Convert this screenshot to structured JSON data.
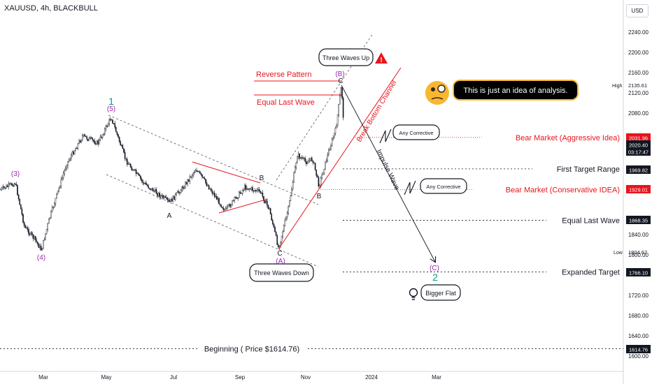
{
  "header": {
    "title": "XAUUSD, 4h, BLACKBULL",
    "currency": "USD"
  },
  "colors": {
    "red": "#e8141c",
    "purple": "#9c27b0",
    "green": "#089981",
    "dark": "#131722",
    "grid": "#787b86"
  },
  "chart_data": {
    "type": "candlestick",
    "title": "XAUUSD, 4h, BLACKBULL",
    "currency": "USD",
    "x_ticks": [
      "Mar",
      "May",
      "Jul",
      "Sep",
      "Nov",
      "2024",
      "Mar"
    ],
    "y_ticks": [
      2240,
      2200,
      2160,
      2120,
      2080,
      1840,
      1800,
      1720,
      1680,
      1640,
      1600
    ],
    "ylim": [
      1590,
      2270
    ],
    "high": {
      "label": "High",
      "value": "2135.61"
    },
    "low": {
      "label": "Low",
      "value": "1804.67"
    },
    "price_tags": [
      {
        "value": "2031.96",
        "color": "#e8141c"
      },
      {
        "value": "2020.40",
        "color": "#131722"
      },
      {
        "value": "03:17:47",
        "color": "#131722"
      },
      {
        "value": "1969.82",
        "color": "#131722"
      },
      {
        "value": "1929.01",
        "color": "#e8141c"
      },
      {
        "value": "1868.35",
        "color": "#131722"
      },
      {
        "value": "1766.10",
        "color": "#131722"
      },
      {
        "value": "1614.76",
        "color": "#131722"
      }
    ],
    "levels": [
      {
        "label": "Bear Market (Aggressive Idea)",
        "price": 2031.96,
        "color": "#e8141c"
      },
      {
        "label": "First Target Range",
        "price": 1969.82,
        "color": "#131722"
      },
      {
        "label": "Bear Market (Conservative IDEA)",
        "price": 1929.01,
        "color": "#e8141c"
      },
      {
        "label": "Equal Last Wave",
        "price": 1868.35,
        "color": "#131722"
      },
      {
        "label": "Expanded Target",
        "price": 1766.1,
        "color": "#131722"
      },
      {
        "label": "Beginning ( Price $1614.76)",
        "price": 1614.76,
        "color": "#131722"
      }
    ],
    "wave_labels": {
      "w3": "(3)",
      "w4": "(4)",
      "w5": "(5)",
      "one": "1",
      "a1": "A",
      "b1": "B",
      "c1": "C",
      "wa": "(A)",
      "b2": "B",
      "c2": "C",
      "wb": "(B)",
      "wc": "(C)",
      "two": "2"
    },
    "annotations": {
      "three_up": "Three Waves Up",
      "three_down": "Three Waves Down",
      "reverse_pattern": "Reverse Pattern",
      "equal_last_wave": "Equal Last Wave",
      "break_channel": "Break Bottom Channel",
      "impulse_wave": "Impulse Wave",
      "any_corrective_1": "Any Corrective",
      "any_corrective_2": "Any Corrective",
      "bigger_flat": "Bigger Flat",
      "idea": "This is just an idea of analysis."
    }
  }
}
